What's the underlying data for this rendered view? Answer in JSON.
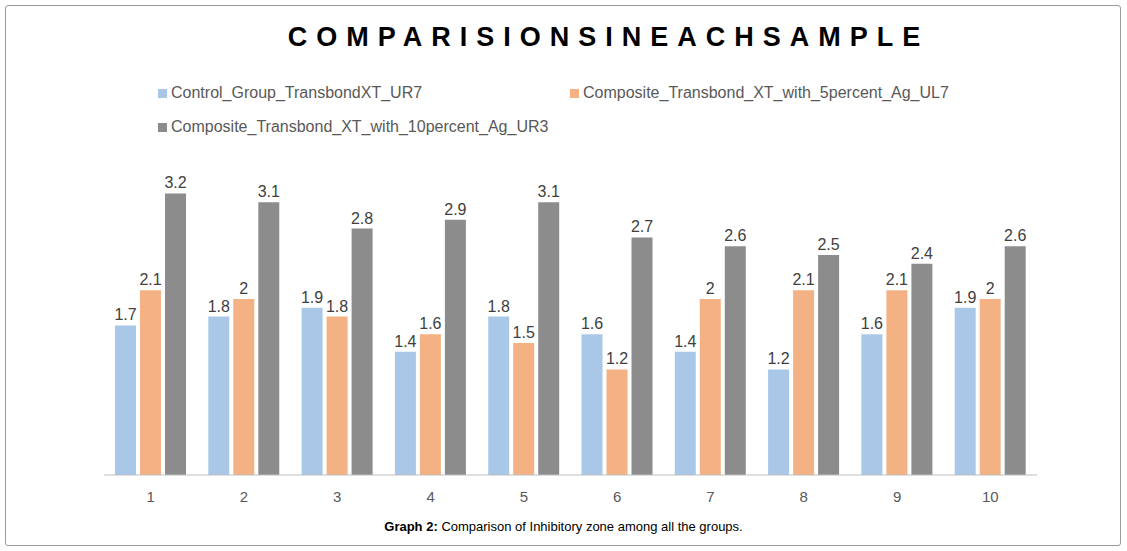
{
  "chart_data": {
    "type": "bar",
    "title": "COMPARISIONSINEACHSAMPLE",
    "caption_label": "Graph 2:",
    "caption": "Comparison of Inhibitory zone among all the groups.",
    "categories": [
      "1",
      "2",
      "3",
      "4",
      "5",
      "6",
      "7",
      "8",
      "9",
      "10"
    ],
    "series": [
      {
        "name": "Control_Group_TransbondXT_UR7",
        "color": "#a9c8e8",
        "values": [
          1.7,
          1.8,
          1.9,
          1.4,
          1.8,
          1.6,
          1.4,
          1.2,
          1.6,
          1.9
        ]
      },
      {
        "name": "Composite_Transbond_XT_with_5percent_Ag_UL7",
        "color": "#f4b183",
        "values": [
          2.1,
          2,
          1.8,
          1.6,
          1.5,
          1.2,
          2,
          2.1,
          2.1,
          2
        ]
      },
      {
        "name": "Composite_Transbond_XT_with_10percent_Ag_UR3",
        "color": "#8c8c8c",
        "values": [
          3.2,
          3.1,
          2.8,
          2.9,
          3.1,
          2.7,
          2.6,
          2.5,
          2.4,
          2.6
        ]
      }
    ],
    "ylim": [
      0,
      3.5
    ],
    "data_labels": true,
    "tick_labels": "x",
    "grid": false,
    "legend": "top"
  }
}
